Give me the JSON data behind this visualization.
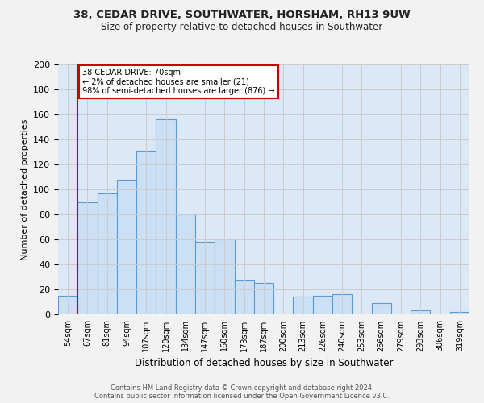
{
  "title1": "38, CEDAR DRIVE, SOUTHWATER, HORSHAM, RH13 9UW",
  "title2": "Size of property relative to detached houses in Southwater",
  "xlabel": "Distribution of detached houses by size in Southwater",
  "ylabel": "Number of detached properties",
  "bar_labels": [
    "54sqm",
    "67sqm",
    "81sqm",
    "94sqm",
    "107sqm",
    "120sqm",
    "134sqm",
    "147sqm",
    "160sqm",
    "173sqm",
    "187sqm",
    "200sqm",
    "213sqm",
    "226sqm",
    "240sqm",
    "253sqm",
    "266sqm",
    "279sqm",
    "293sqm",
    "306sqm",
    "319sqm"
  ],
  "bar_values": [
    15,
    90,
    97,
    108,
    131,
    156,
    80,
    58,
    60,
    27,
    25,
    0,
    14,
    15,
    16,
    0,
    9,
    0,
    3,
    0,
    2
  ],
  "bar_color": "#cce0f5",
  "bar_edge_color": "#5b9bd5",
  "property_line_label": "38 CEDAR DRIVE: 70sqm",
  "pct_smaller_text": "← 2% of detached houses are smaller (21)",
  "pct_larger_text": "98% of semi-detached houses are larger (876) →",
  "annotation_box_color": "#ffffff",
  "annotation_box_edge": "#cc0000",
  "vline_color": "#cc0000",
  "ylim": [
    0,
    200
  ],
  "yticks": [
    0,
    20,
    40,
    60,
    80,
    100,
    120,
    140,
    160,
    180,
    200
  ],
  "grid_color": "#cccccc",
  "bg_color": "#dce8f5",
  "fig_bg_color": "#f2f2f2",
  "footer1": "Contains HM Land Registry data © Crown copyright and database right 2024.",
  "footer2": "Contains public sector information licensed under the Open Government Licence v3.0."
}
